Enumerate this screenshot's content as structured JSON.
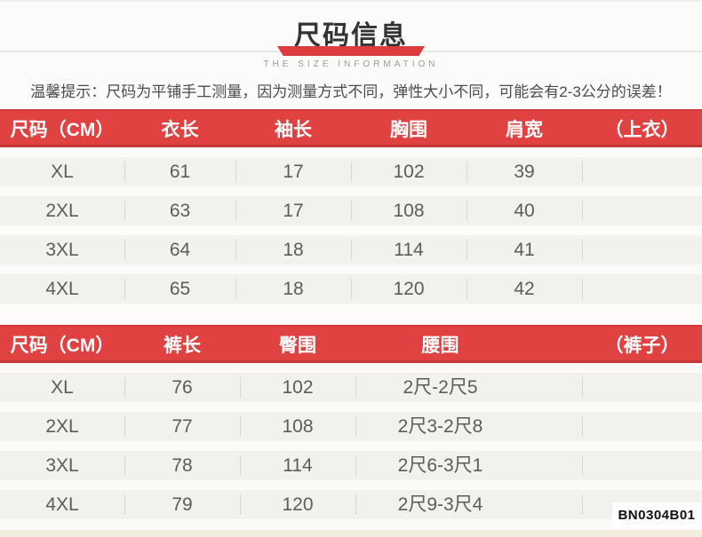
{
  "page": {
    "title": "尺码信息",
    "subtitle": "THE SIZE INFORMATION",
    "tip": "温馨提示：尺码为平铺手工测量，因为测量方式不同，弹性大小不同，可能会有2-3公分的误差！",
    "product_code": "BN0304B01"
  },
  "colors": {
    "header_red": "#e04141",
    "header_red_border_top": "#d23a3a",
    "header_red_border_bottom": "#c43737",
    "ribbon_red": "#dc3c3c",
    "row_background": "#f2f1ed",
    "page_background": "#fcfbf9",
    "bottom_strip": "#f2eddd"
  },
  "tops_table": {
    "headers": [
      "尺码（CM）",
      "衣长",
      "袖长",
      "胸围",
      "肩宽",
      "（上衣）"
    ],
    "rows": [
      [
        "XL",
        "61",
        "17",
        "102",
        "39",
        ""
      ],
      [
        "2XL",
        "63",
        "17",
        "108",
        "40",
        ""
      ],
      [
        "3XL",
        "64",
        "18",
        "114",
        "41",
        ""
      ],
      [
        "4XL",
        "65",
        "18",
        "120",
        "42",
        ""
      ]
    ]
  },
  "pants_table": {
    "headers": [
      "尺码（CM）",
      "裤长",
      "臀围",
      "腰围",
      "（裤子）"
    ],
    "rows": [
      [
        "XL",
        "76",
        "102",
        "2尺-2尺5",
        ""
      ],
      [
        "2XL",
        "77",
        "108",
        "2尺3-2尺8",
        ""
      ],
      [
        "3XL",
        "78",
        "114",
        "2尺6-3尺1",
        ""
      ],
      [
        "4XL",
        "79",
        "120",
        "2尺9-3尺4",
        ""
      ]
    ]
  }
}
